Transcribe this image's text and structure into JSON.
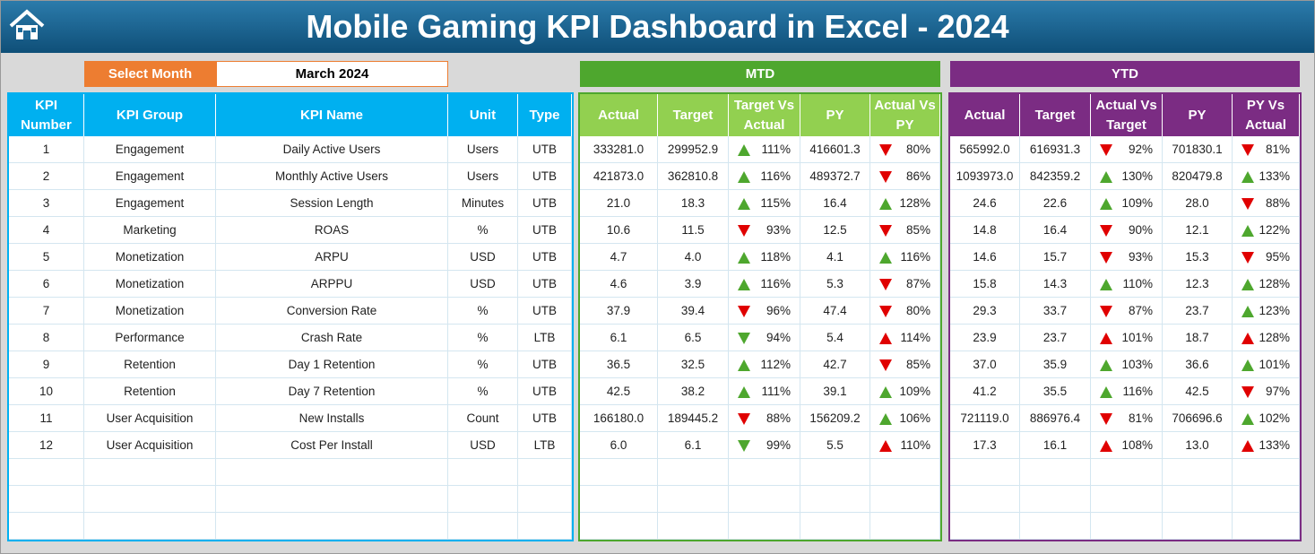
{
  "header": {
    "title": "Mobile Gaming KPI Dashboard in Excel - 2024",
    "select_label": "Select Month",
    "month": "March 2024"
  },
  "kpi_table": {
    "headers": [
      "KPI Number",
      "KPI Group",
      "KPI Name",
      "Unit",
      "Type"
    ],
    "rows": [
      [
        "1",
        "Engagement",
        "Daily Active Users",
        "Users",
        "UTB"
      ],
      [
        "2",
        "Engagement",
        "Monthly Active Users",
        "Users",
        "UTB"
      ],
      [
        "3",
        "Engagement",
        "Session Length",
        "Minutes",
        "UTB"
      ],
      [
        "4",
        "Marketing",
        "ROAS",
        "%",
        "UTB"
      ],
      [
        "5",
        "Monetization",
        "ARPU",
        "USD",
        "UTB"
      ],
      [
        "6",
        "Monetization",
        "ARPPU",
        "USD",
        "UTB"
      ],
      [
        "7",
        "Monetization",
        "Conversion Rate",
        "%",
        "UTB"
      ],
      [
        "8",
        "Performance",
        "Crash Rate",
        "%",
        "LTB"
      ],
      [
        "9",
        "Retention",
        "Day 1 Retention",
        "%",
        "UTB"
      ],
      [
        "10",
        "Retention",
        "Day 7 Retention",
        "%",
        "UTB"
      ],
      [
        "11",
        "User Acquisition",
        "New Installs",
        "Count",
        "UTB"
      ],
      [
        "12",
        "User Acquisition",
        "Cost Per Install",
        "USD",
        "LTB"
      ]
    ]
  },
  "mtd": {
    "label": "MTD",
    "headers": [
      "Actual",
      "Target",
      "Target Vs Actual",
      "PY",
      "Actual Vs PY"
    ],
    "rows": [
      [
        "333281.0",
        "299952.9",
        "111%",
        "416601.3",
        "80%"
      ],
      [
        "421873.0",
        "362810.8",
        "116%",
        "489372.7",
        "86%"
      ],
      [
        "21.0",
        "18.3",
        "115%",
        "16.4",
        "128%"
      ],
      [
        "10.6",
        "11.5",
        "93%",
        "12.5",
        "85%"
      ],
      [
        "4.7",
        "4.0",
        "118%",
        "4.1",
        "116%"
      ],
      [
        "4.6",
        "3.9",
        "116%",
        "5.3",
        "87%"
      ],
      [
        "37.9",
        "39.4",
        "96%",
        "47.4",
        "80%"
      ],
      [
        "6.1",
        "6.5",
        "94%",
        "5.4",
        "114%"
      ],
      [
        "36.5",
        "32.5",
        "112%",
        "42.7",
        "85%"
      ],
      [
        "42.5",
        "38.2",
        "111%",
        "39.1",
        "109%"
      ],
      [
        "166180.0",
        "189445.2",
        "88%",
        "156209.2",
        "106%"
      ],
      [
        "6.0",
        "6.1",
        "99%",
        "5.5",
        "110%"
      ]
    ]
  },
  "ytd": {
    "label": "YTD",
    "headers": [
      "Actual",
      "Target",
      "Actual Vs Target",
      "PY",
      "PY Vs Actual"
    ],
    "rows": [
      [
        "565992.0",
        "616931.3",
        "92%",
        "701830.1",
        "81%"
      ],
      [
        "1093973.0",
        "842359.2",
        "130%",
        "820479.8",
        "133%"
      ],
      [
        "24.6",
        "22.6",
        "109%",
        "28.0",
        "88%"
      ],
      [
        "14.8",
        "16.4",
        "90%",
        "12.1",
        "122%"
      ],
      [
        "14.6",
        "15.7",
        "93%",
        "15.3",
        "95%"
      ],
      [
        "15.8",
        "14.3",
        "110%",
        "12.3",
        "128%"
      ],
      [
        "29.3",
        "33.7",
        "87%",
        "23.7",
        "123%"
      ],
      [
        "23.9",
        "23.7",
        "101%",
        "18.7",
        "128%"
      ],
      [
        "37.0",
        "35.9",
        "103%",
        "36.6",
        "101%"
      ],
      [
        "41.2",
        "35.5",
        "116%",
        "42.5",
        "97%"
      ],
      [
        "721119.0",
        "886976.4",
        "81%",
        "706696.6",
        "102%"
      ],
      [
        "17.3",
        "16.1",
        "108%",
        "13.0",
        "133%"
      ]
    ]
  }
}
